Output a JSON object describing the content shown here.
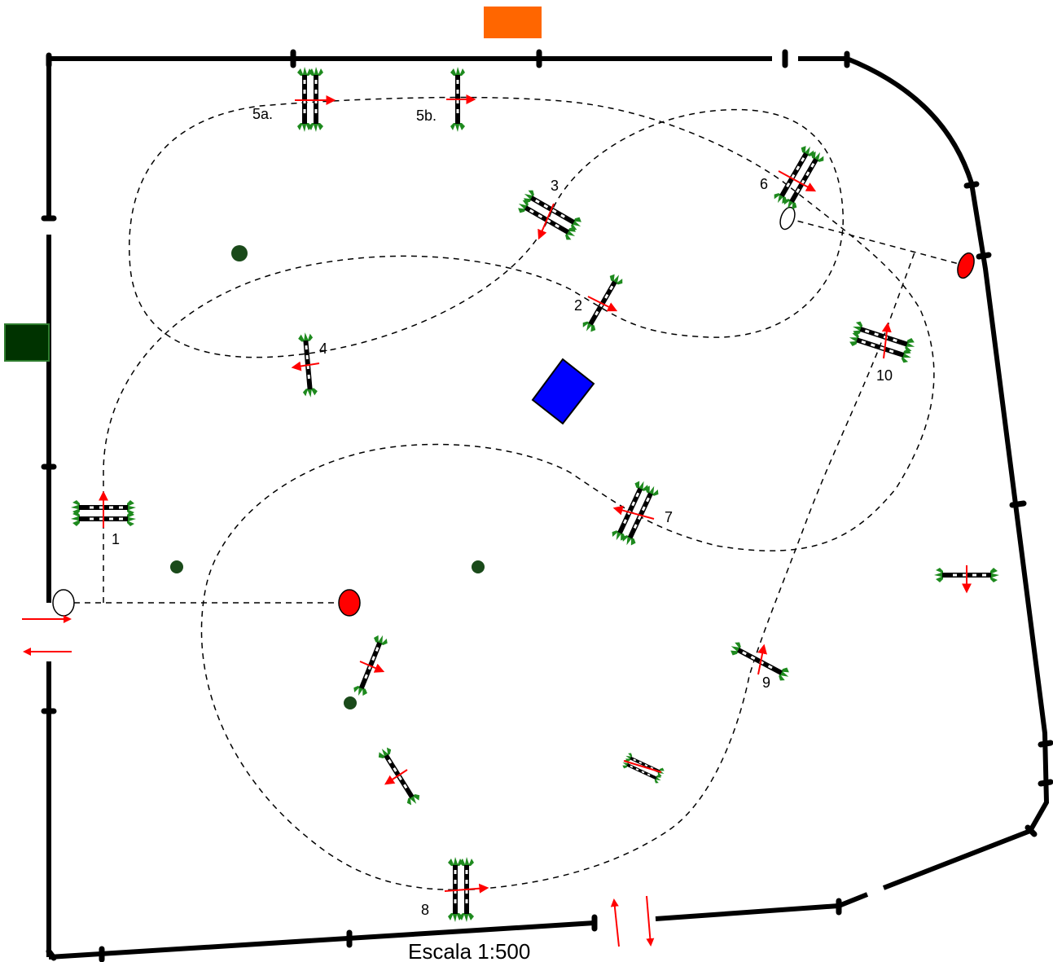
{
  "diagram": {
    "scale_text": "Escala 1:500",
    "colors": {
      "fence": "#000000",
      "route": "#000000",
      "foliage": "#1e8a1e",
      "arrow": "#ff0000",
      "start_finish": "#ff0000",
      "judge_box": "#ff6600",
      "side_box": "#003300",
      "center_box": "#0000ff",
      "shrub": "#1a4a1a"
    },
    "jumps": [
      {
        "label": "1",
        "type": "oxer"
      },
      {
        "label": "2",
        "type": "vertical"
      },
      {
        "label": "3",
        "type": "oxer"
      },
      {
        "label": "4",
        "type": "vertical"
      },
      {
        "label": "5a.",
        "type": "oxer"
      },
      {
        "label": "5b.",
        "type": "vertical"
      },
      {
        "label": "6",
        "type": "oxer"
      },
      {
        "label": "7",
        "type": "oxer"
      },
      {
        "label": "8",
        "type": "oxer"
      },
      {
        "label": "9",
        "type": "vertical"
      },
      {
        "label": "10",
        "type": "oxer"
      }
    ],
    "extra_jumps": 4
  }
}
